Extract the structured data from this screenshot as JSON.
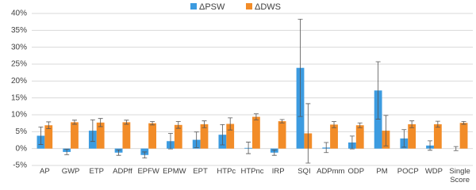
{
  "chart_data": {
    "type": "bar",
    "categories": [
      "AP",
      "GWP",
      "ETP",
      "ADPff",
      "EPFW",
      "EPMW",
      "EPT",
      "HTPc",
      "HTPnc",
      "IRP",
      "SQI",
      "ADPmm",
      "ODP",
      "PM",
      "POCP",
      "WDP",
      "Single Score"
    ],
    "series": [
      {
        "name": "ΔPSW",
        "color": "#3c9be0",
        "values": [
          3.8,
          -1.0,
          5.3,
          -1.2,
          -1.9,
          2.2,
          2.6,
          4.1,
          0.2,
          -1.2,
          23.9,
          0.3,
          1.8,
          17.2,
          3.0,
          0.9,
          0.0
        ],
        "errors": [
          2.6,
          0.8,
          3.2,
          0.8,
          0.9,
          2.3,
          2.3,
          3.0,
          1.7,
          0.8,
          14.4,
          1.5,
          1.9,
          8.5,
          2.6,
          1.4,
          0.6
        ]
      },
      {
        "name": "ΔDWS",
        "color": "#f28c28",
        "values": [
          6.9,
          7.8,
          7.7,
          7.8,
          7.5,
          7.0,
          7.2,
          7.3,
          9.4,
          8.1,
          4.5,
          7.1,
          6.9,
          5.3,
          7.2,
          7.2,
          7.6
        ],
        "errors": [
          1.0,
          0.6,
          1.2,
          0.6,
          0.5,
          1.0,
          1.0,
          1.8,
          0.9,
          0.5,
          8.8,
          0.9,
          0.7,
          4.5,
          1.0,
          0.9,
          0.4
        ]
      }
    ],
    "ylim": [
      -5,
      40
    ],
    "yticks": [
      {
        "value": -5,
        "label": "-5%"
      },
      {
        "value": 0,
        "label": "0%"
      },
      {
        "value": 5,
        "label": "5%"
      },
      {
        "value": 10,
        "label": "10%"
      },
      {
        "value": 15,
        "label": "15%"
      },
      {
        "value": 20,
        "label": "20%"
      },
      {
        "value": 25,
        "label": "25%"
      },
      {
        "value": 30,
        "label": "30%"
      },
      {
        "value": 35,
        "label": "35%"
      },
      {
        "value": 40,
        "label": "40%"
      }
    ],
    "grid": true,
    "legend": "top"
  }
}
